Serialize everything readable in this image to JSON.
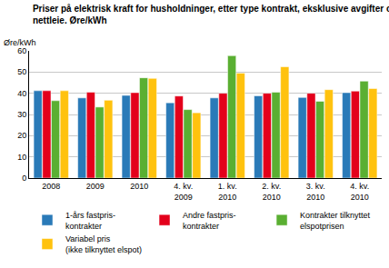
{
  "chart_data": {
    "type": "bar",
    "title": "Priser på elektrisk kraft for husholdninger, etter type kontrakt, eksklusive avgifter og\nnettleie. Øre/kWh",
    "ylabel": "Øre/kWh",
    "categories": [
      "2008",
      "2009",
      "2010",
      "4. kv.\n2009",
      "1. kv.\n2010",
      "2. kv.\n2010",
      "3. kv.\n2010",
      "4. kv.\n2010"
    ],
    "series": [
      {
        "name": "1-års fastpris-\nkontrakter",
        "color": "#2a7ab8",
        "values": [
          41.2,
          37.8,
          39.0,
          35.5,
          37.8,
          38.8,
          38.0,
          40.3
        ]
      },
      {
        "name": "Andre fastpris-\nkontrakter",
        "color": "#e3001b",
        "values": [
          41.2,
          40.5,
          40.3,
          38.7,
          40.0,
          40.0,
          40.0,
          41.0
        ]
      },
      {
        "name": "Kontrakter tilknyttet\nelspotprisen",
        "color": "#5aaf32",
        "values": [
          36.5,
          33.5,
          47.3,
          32.3,
          57.7,
          40.5,
          36.2,
          45.7
        ]
      },
      {
        "name": "Variabel pris\n(ikke tilknyttet elspot)",
        "color": "#ffc20e",
        "values": [
          41.2,
          36.7,
          47.0,
          30.8,
          49.5,
          52.5,
          41.7,
          42.2
        ]
      }
    ],
    "ylim": [
      0,
      60
    ],
    "yticks": [
      0,
      10,
      20,
      30,
      40,
      50,
      60
    ],
    "grid": true,
    "legend": "bottom"
  }
}
